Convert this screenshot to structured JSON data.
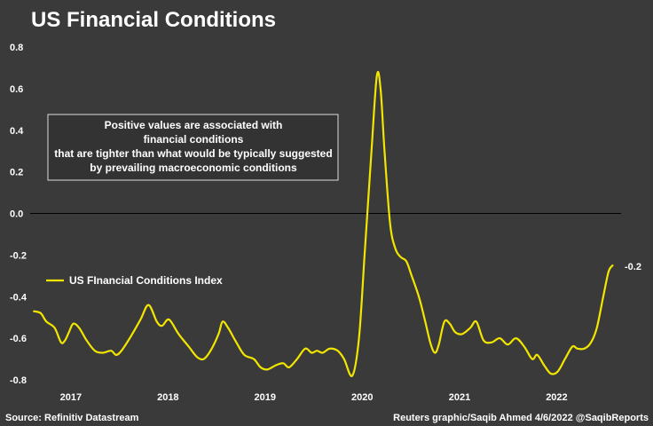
{
  "chart_data": {
    "type": "line",
    "title": "US Financial Conditions",
    "series": [
      {
        "name": "US FInancial Conditions Index",
        "color": "#f2e600",
        "points": [
          [
            "2016-08-15",
            -0.47
          ],
          [
            "2016-09-10",
            -0.48
          ],
          [
            "2016-10-01",
            -0.52
          ],
          [
            "2016-11-01",
            -0.55
          ],
          [
            "2016-11-25",
            -0.62
          ],
          [
            "2016-12-10",
            -0.61
          ],
          [
            "2016-12-25",
            -0.57
          ],
          [
            "2017-01-10",
            -0.53
          ],
          [
            "2017-02-01",
            -0.55
          ],
          [
            "2017-03-01",
            -0.61
          ],
          [
            "2017-04-01",
            -0.66
          ],
          [
            "2017-05-01",
            -0.67
          ],
          [
            "2017-06-01",
            -0.66
          ],
          [
            "2017-06-20",
            -0.68
          ],
          [
            "2017-07-10",
            -0.66
          ],
          [
            "2017-08-15",
            -0.59
          ],
          [
            "2017-09-20",
            -0.51
          ],
          [
            "2017-10-20",
            -0.44
          ],
          [
            "2017-11-20",
            -0.52
          ],
          [
            "2017-12-10",
            -0.54
          ],
          [
            "2018-01-05",
            -0.51
          ],
          [
            "2018-02-10",
            -0.58
          ],
          [
            "2018-03-20",
            -0.64
          ],
          [
            "2018-04-20",
            -0.69
          ],
          [
            "2018-05-15",
            -0.7
          ],
          [
            "2018-06-10",
            -0.66
          ],
          [
            "2018-07-10",
            -0.58
          ],
          [
            "2018-07-25",
            -0.52
          ],
          [
            "2018-08-15",
            -0.55
          ],
          [
            "2018-09-15",
            -0.62
          ],
          [
            "2018-10-15",
            -0.68
          ],
          [
            "2018-11-20",
            -0.7
          ],
          [
            "2018-12-15",
            -0.74
          ],
          [
            "2019-01-10",
            -0.75
          ],
          [
            "2019-02-10",
            -0.73
          ],
          [
            "2019-03-10",
            -0.72
          ],
          [
            "2019-04-01",
            -0.74
          ],
          [
            "2019-05-01",
            -0.7
          ],
          [
            "2019-06-01",
            -0.65
          ],
          [
            "2019-06-25",
            -0.67
          ],
          [
            "2019-07-15",
            -0.66
          ],
          [
            "2019-08-05",
            -0.67
          ],
          [
            "2019-09-01",
            -0.65
          ],
          [
            "2019-10-01",
            -0.66
          ],
          [
            "2019-10-25",
            -0.7
          ],
          [
            "2019-11-25",
            -0.78
          ],
          [
            "2019-12-20",
            -0.6
          ],
          [
            "2020-01-10",
            -0.2
          ],
          [
            "2020-02-05",
            0.3
          ],
          [
            "2020-02-25",
            0.66
          ],
          [
            "2020-03-10",
            0.6
          ],
          [
            "2020-03-25",
            0.3
          ],
          [
            "2020-04-15",
            -0.05
          ],
          [
            "2020-05-05",
            -0.17
          ],
          [
            "2020-05-25",
            -0.21
          ],
          [
            "2020-06-15",
            -0.23
          ],
          [
            "2020-07-05",
            -0.3
          ],
          [
            "2020-08-01",
            -0.4
          ],
          [
            "2020-08-25",
            -0.52
          ],
          [
            "2020-09-15",
            -0.63
          ],
          [
            "2020-10-01",
            -0.67
          ],
          [
            "2020-10-15",
            -0.63
          ],
          [
            "2020-11-05",
            -0.52
          ],
          [
            "2020-11-25",
            -0.53
          ],
          [
            "2020-12-15",
            -0.57
          ],
          [
            "2021-01-10",
            -0.58
          ],
          [
            "2021-02-10",
            -0.55
          ],
          [
            "2021-03-05",
            -0.52
          ],
          [
            "2021-04-01",
            -0.61
          ],
          [
            "2021-05-01",
            -0.62
          ],
          [
            "2021-06-01",
            -0.6
          ],
          [
            "2021-07-01",
            -0.63
          ],
          [
            "2021-08-01",
            -0.6
          ],
          [
            "2021-09-01",
            -0.64
          ],
          [
            "2021-10-01",
            -0.7
          ],
          [
            "2021-10-20",
            -0.68
          ],
          [
            "2021-11-15",
            -0.73
          ],
          [
            "2021-12-10",
            -0.77
          ],
          [
            "2022-01-05",
            -0.76
          ],
          [
            "2022-02-01",
            -0.7
          ],
          [
            "2022-03-01",
            -0.64
          ],
          [
            "2022-03-20",
            -0.65
          ],
          [
            "2022-04-15",
            -0.65
          ],
          [
            "2022-05-10",
            -0.62
          ],
          [
            "2022-06-01",
            -0.55
          ],
          [
            "2022-06-25",
            -0.4
          ],
          [
            "2022-07-15",
            -0.28
          ],
          [
            "2022-07-30",
            -0.25
          ]
        ]
      }
    ],
    "ylim": [
      -0.8,
      0.8
    ],
    "yticks": [
      "0.8",
      "0.6",
      "0.4",
      "0.2",
      "0.0",
      "-0.2",
      "-0.4",
      "-0.6",
      "-0.8"
    ],
    "xlim": [
      "2016-08-01",
      "2022-08-31"
    ],
    "xticks": [
      {
        "label": "2017",
        "date": "2017-01-01"
      },
      {
        "label": "2018",
        "date": "2018-01-01"
      },
      {
        "label": "2019",
        "date": "2019-01-01"
      },
      {
        "label": "2020",
        "date": "2020-01-01"
      },
      {
        "label": "2021",
        "date": "2021-01-01"
      },
      {
        "label": "2022",
        "date": "2022-01-01"
      }
    ],
    "zero_line": true,
    "grid": false,
    "legend_position": "middle-left",
    "end_label": "-0.2",
    "annotation_lines": [
      "Positive values are associated with",
      "financial conditions",
      "that are tighter than what would be typically suggested",
      "by prevailing macroeconomic conditions"
    ],
    "source": "Source: Refinitiv Datastream",
    "credit": "Reuters graphic/Saqib Ahmed 4/6/2022 @SaqibReports",
    "colors": {
      "background": "#3a3a3a",
      "line": "#f2e600",
      "text": "#ffffff",
      "zero_line": "#000000"
    }
  }
}
